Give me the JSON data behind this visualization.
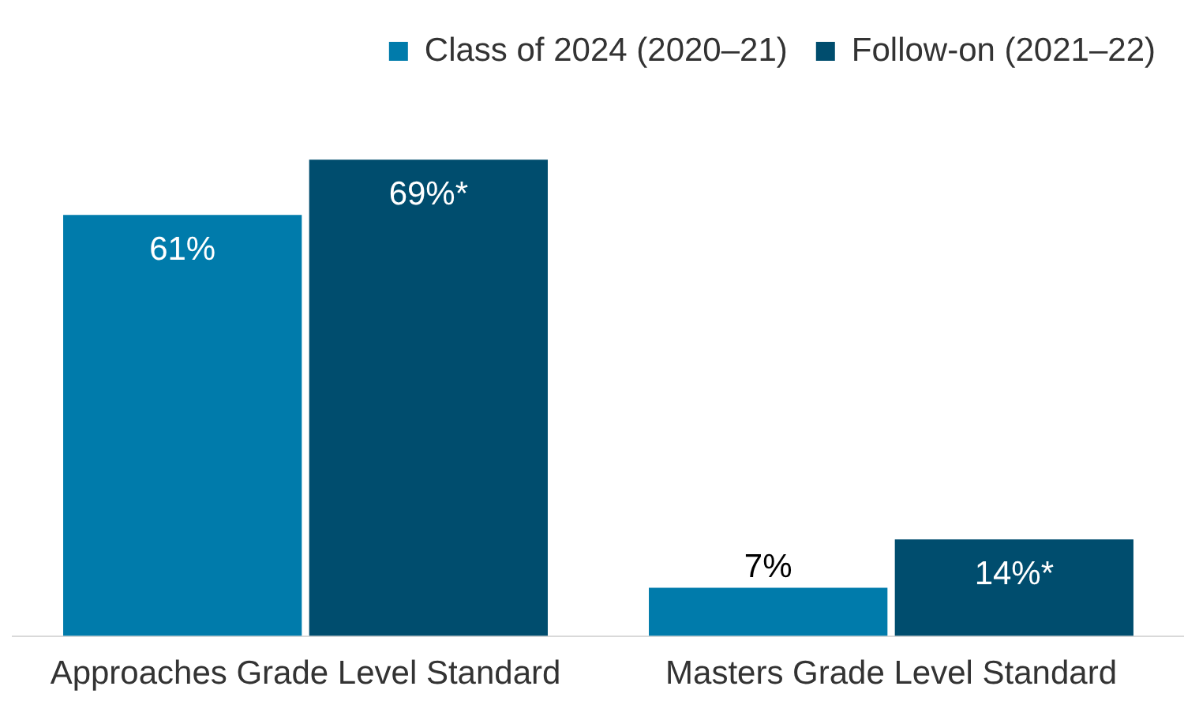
{
  "chart_data": {
    "type": "bar",
    "categories": [
      "Approaches Grade Level Standard",
      "Masters Grade Level Standard"
    ],
    "series": [
      {
        "name": "Class of 2024 (2020–21)",
        "color": "#007bab",
        "values": [
          61,
          7
        ],
        "value_labels": [
          "61%",
          "7%"
        ]
      },
      {
        "name": "Follow-on (2021–22)",
        "color": "#004d6e",
        "values": [
          69,
          14
        ],
        "value_labels": [
          "69%*",
          "14%*"
        ]
      }
    ],
    "legend": "top right",
    "grid": false
  }
}
